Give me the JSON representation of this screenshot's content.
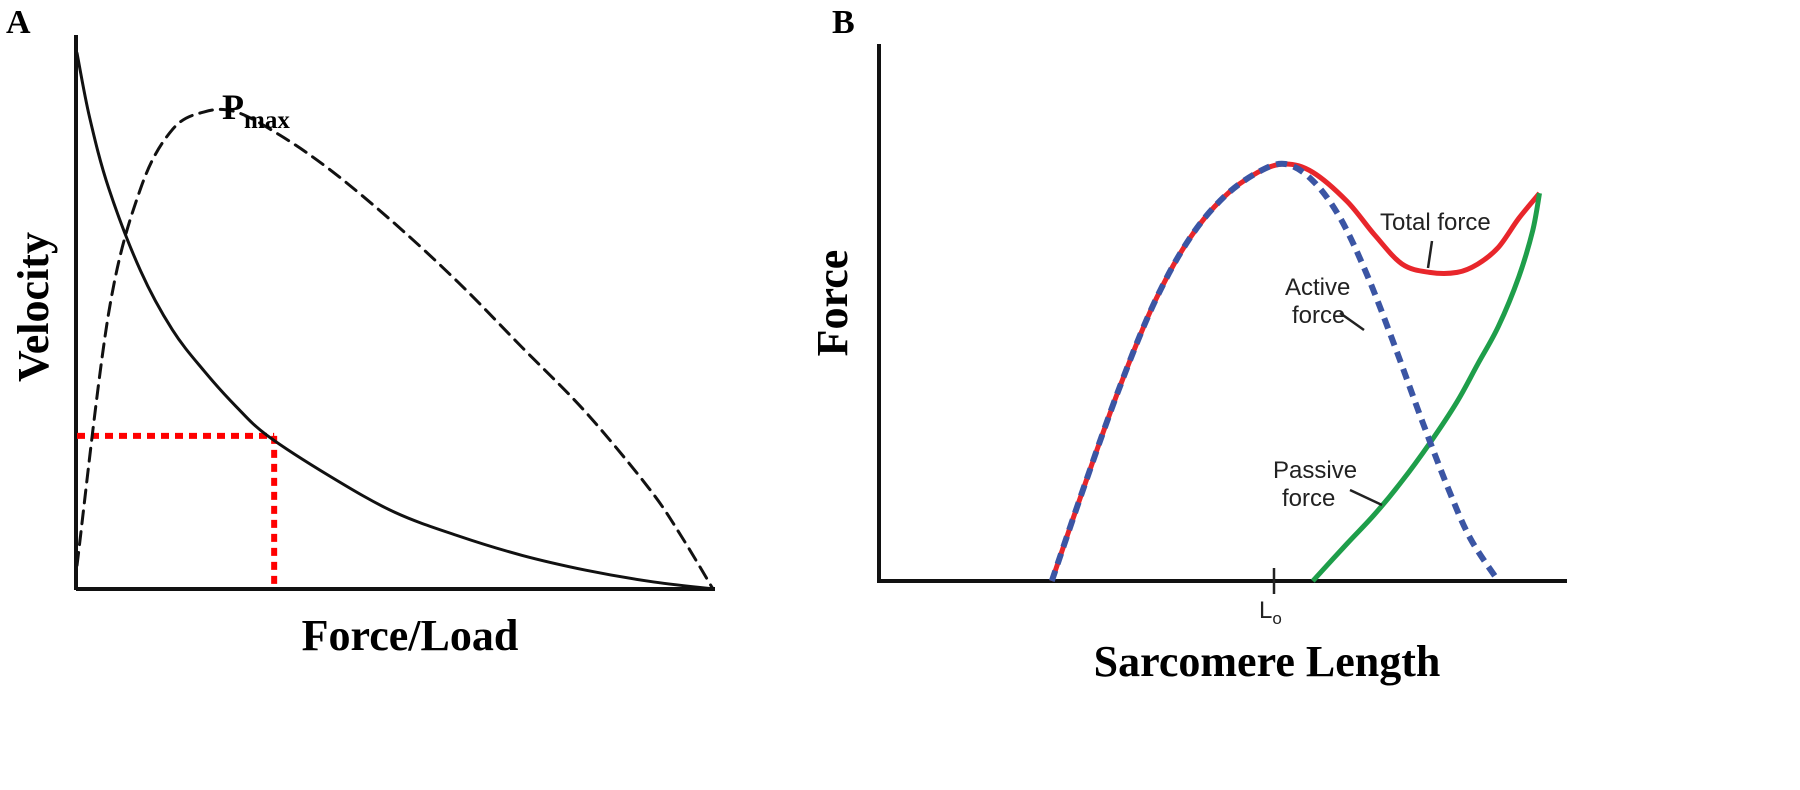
{
  "panels": {
    "a": {
      "letter": "A"
    },
    "b": {
      "letter": "B"
    }
  },
  "chart_data": [
    {
      "type": "line",
      "panel": "A",
      "xlabel": "Force/Load",
      "ylabel": "Velocity",
      "xlim": [
        0,
        1
      ],
      "ylim": [
        0,
        1
      ],
      "grid": false,
      "ticks": "none",
      "series": [
        {
          "style": "solid",
          "color": "#111111",
          "x": [
            0,
            0.02,
            0.05,
            0.1,
            0.15,
            0.2,
            0.25,
            0.3,
            0.4,
            0.5,
            0.6,
            0.7,
            0.8,
            0.9,
            1.0
          ],
          "y": [
            0.91,
            0.8,
            0.68,
            0.54,
            0.44,
            0.37,
            0.31,
            0.26,
            0.19,
            0.13,
            0.09,
            0.057,
            0.032,
            0.013,
            0
          ]
        },
        {
          "style": "dashed",
          "color": "#111111",
          "x": [
            0,
            0.05,
            0.1,
            0.15,
            0.2,
            0.25,
            0.32,
            0.4,
            0.5,
            0.6,
            0.7,
            0.8,
            0.9,
            0.95,
            1.0
          ],
          "y": [
            0.04,
            0.47,
            0.68,
            0.78,
            0.81,
            0.81,
            0.77,
            0.71,
            0.62,
            0.52,
            0.41,
            0.3,
            0.17,
            0.09,
            0
          ]
        }
      ],
      "annotations": [
        {
          "text": "P",
          "subscript": "max",
          "x": 0.23,
          "y": 0.83
        }
      ],
      "reference_lines": {
        "color": "#ff0000",
        "style": "dotted",
        "point": {
          "x": 0.31,
          "y": 0.26
        }
      }
    },
    {
      "type": "line",
      "panel": "B",
      "xlabel": "Sarcomere Length",
      "ylabel": "Force",
      "xlim": [
        0,
        1
      ],
      "ylim": [
        0,
        1
      ],
      "grid": false,
      "tick_labels": [
        {
          "main": "L",
          "subscript": "o",
          "x": 0.59
        }
      ],
      "series": [
        {
          "name": "Total force",
          "style": "solid",
          "color": "#e8262b",
          "x": [
            0.25,
            0.3,
            0.35,
            0.4,
            0.45,
            0.5,
            0.55,
            0.59,
            0.63,
            0.68,
            0.72,
            0.76,
            0.8,
            0.84,
            0.87,
            0.9,
            0.93,
            0.96
          ],
          "y": [
            0,
            0.24,
            0.47,
            0.67,
            0.82,
            0.92,
            0.98,
            1.0,
            0.98,
            0.91,
            0.83,
            0.76,
            0.74,
            0.74,
            0.76,
            0.8,
            0.87,
            0.93
          ]
        },
        {
          "name": "Active force",
          "style": "dashed",
          "color": "#3b55a4",
          "x": [
            0.25,
            0.3,
            0.35,
            0.4,
            0.45,
            0.5,
            0.55,
            0.59,
            0.63,
            0.67,
            0.71,
            0.75,
            0.79,
            0.83,
            0.86,
            0.9
          ],
          "y": [
            0,
            0.24,
            0.47,
            0.67,
            0.82,
            0.92,
            0.98,
            1.0,
            0.96,
            0.87,
            0.73,
            0.56,
            0.38,
            0.21,
            0.1,
            0
          ]
        },
        {
          "name": "Passive force",
          "style": "solid",
          "color": "#1e9e4a",
          "x": [
            0.63,
            0.68,
            0.72,
            0.76,
            0.8,
            0.84,
            0.87,
            0.9,
            0.93,
            0.95,
            0.96
          ],
          "y": [
            0,
            0.09,
            0.16,
            0.24,
            0.33,
            0.43,
            0.52,
            0.61,
            0.73,
            0.84,
            0.93
          ]
        }
      ],
      "annotations": [
        {
          "text": "Total force",
          "lines": [
            "Total force"
          ]
        },
        {
          "text": "Active force",
          "lines": [
            "Active",
            "force"
          ]
        },
        {
          "text": "Passive force",
          "lines": [
            "Passive",
            "force"
          ]
        }
      ]
    }
  ]
}
